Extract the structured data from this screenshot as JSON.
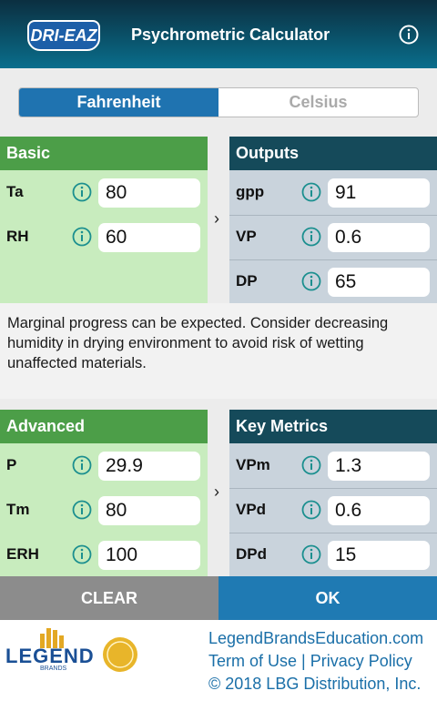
{
  "header": {
    "logo": "DRI-EAZ",
    "title": "Psychrometric Calculator"
  },
  "units": {
    "options": [
      "Fahrenheit",
      "Celsius"
    ],
    "selected": 0
  },
  "panels": [
    {
      "title": "Basic",
      "rows": [
        {
          "label": "Ta",
          "value": "80"
        },
        {
          "label": "RH",
          "value": "60"
        }
      ]
    },
    {
      "title": "Outputs",
      "rows": [
        {
          "label": "gpp",
          "value": "91"
        },
        {
          "label": "VP",
          "value": "0.6"
        },
        {
          "label": "DP",
          "value": "65"
        }
      ]
    },
    {
      "title": "Advanced",
      "rows": [
        {
          "label": "P",
          "value": "29.9"
        },
        {
          "label": "Tm",
          "value": "80"
        },
        {
          "label": "ERH",
          "value": "100"
        }
      ]
    },
    {
      "title": "Key Metrics",
      "rows": [
        {
          "label": "VPm",
          "value": "1.3"
        },
        {
          "label": "VPd",
          "value": "0.6"
        },
        {
          "label": "DPd",
          "value": "15"
        }
      ]
    }
  ],
  "message": "Marginal progress can be expected. Consider decreasing humidity in drying environment to avoid risk of wetting unaffected materials.",
  "buttons": [
    "CLEAR",
    "OK"
  ],
  "footer": {
    "brand": "LEGEND",
    "brand_sub": "BRANDS",
    "website": "LegendBrandsEducation.com",
    "links": [
      "Term of Use",
      "Privacy Policy"
    ],
    "separator": "|",
    "copyright": "© 2018 LBG Distribution, Inc."
  }
}
